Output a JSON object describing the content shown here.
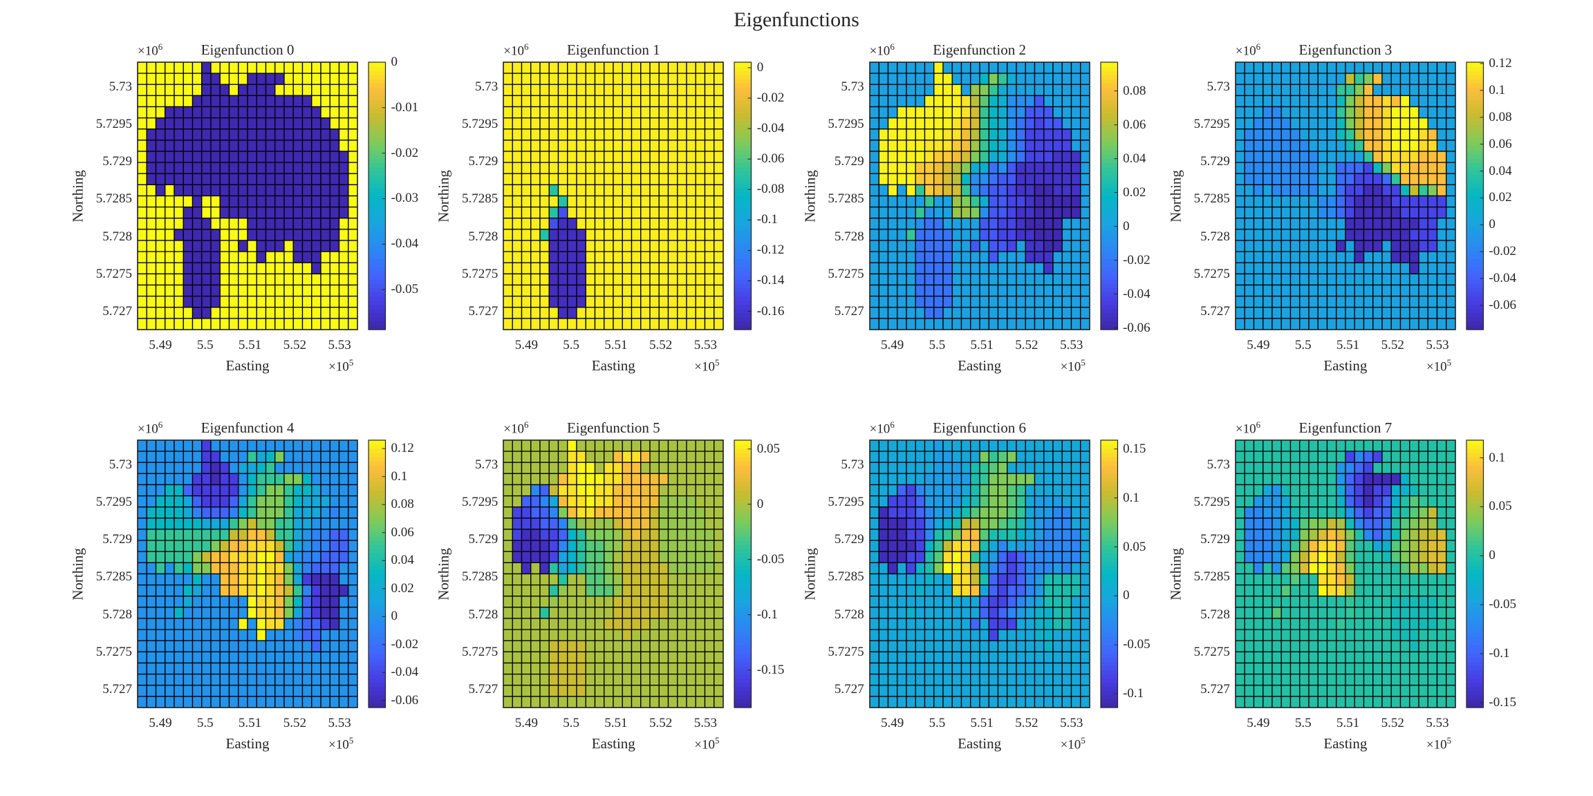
{
  "figure_title": "Eigenfunctions",
  "chart_data": [
    {
      "type": "heatmap",
      "title": "Eigenfunction 0",
      "xlabel": "Easting",
      "ylabel": "Northing",
      "x_multiplier": "×10",
      "x_exponent": "5",
      "y_multiplier": "×10",
      "y_exponent": "6",
      "xlim": [
        5.4849,
        5.534
      ],
      "ylim": [
        5.72676,
        5.730332
      ],
      "xticks": [
        "5.49",
        "5.5",
        "5.51",
        "5.52",
        "5.53"
      ],
      "yticks": [
        "5.727",
        "5.7275",
        "5.728",
        "5.7285",
        "5.729",
        "5.7295",
        "5.73"
      ],
      "colormap": "parula",
      "clim": [
        -0.0588,
        0
      ],
      "cbar_ticks": [
        "0",
        "-0.01",
        "-0.02",
        "-0.03",
        "-0.04",
        "-0.05"
      ],
      "levels": {
        "Y": 0,
        "B": -0.058
      },
      "grid": [
        "YYYYYYYBYYYYYYYYYYYYYYYY",
        "YYYYYYYBBYYYBBBBYYYYYYYY",
        "YYYYYYYBBBYBBBBYYYYYYYYY",
        "YYYYYYBBBBBBBBBBBBBYYYYY",
        "YYYBBBBBBBBBBBBBBBBBYYYY",
        "YYBBBBBBBBBBBBBBBBBBBYYY",
        "YBBBBBBBBBBBBBBBBBBBBBYY",
        "YBBBBBBBBBBBBBBBBBBBBBYY",
        "YBBBBBBBBBBBBBBBBBBBBBBY",
        "YBBBBBBBBBBBBBBBBBBBBBBY",
        "YBBBBBBBBBBBBBBBBBBBBBBY",
        "YYBYBBBBBBBBBBBBBBBBBBBY",
        "YYYYYYBYYBBBBBBBBBBBBBBY",
        "YYYYYBBYYBBBBBBBBBBBBBBY",
        "YYYYYBBBYYYYBBBBBBBBBBYY",
        "YYYYBBBBBYYYBBBBBBBBBBYY",
        "YYYYYBBBBYYBYBBBYBBBBBYY",
        "YYYYYBBBBYYYYBYYYBBBYYYY",
        "YYYYYBBBBYYYYYYYYYYBYYYY",
        "YYYYYBBBBYYYYYYYYYYYYYYY",
        "YYYYYBBBBYYYYYYYYYYYYYYY",
        "YYYYYBBBBYYYYYYYYYYYYYYY",
        "YYYYYYBBYYYYYYYYYYYYYYYY",
        "YYYYYYYYYYYYYYYYYYYYYYYY"
      ]
    },
    {
      "type": "heatmap",
      "title": "Eigenfunction 1",
      "xlabel": "Easting",
      "ylabel": "Northing",
      "x_multiplier": "×10",
      "x_exponent": "5",
      "y_multiplier": "×10",
      "y_exponent": "6",
      "xlim": [
        5.4849,
        5.534
      ],
      "ylim": [
        5.72676,
        5.730332
      ],
      "xticks": [
        "5.49",
        "5.5",
        "5.51",
        "5.52",
        "5.53"
      ],
      "yticks": [
        "5.727",
        "5.7275",
        "5.728",
        "5.7285",
        "5.729",
        "5.7295",
        "5.73"
      ],
      "colormap": "parula",
      "clim": [
        -0.172,
        0.0036
      ],
      "cbar_ticks": [
        "0",
        "-0.02",
        "-0.04",
        "-0.06",
        "-0.08",
        "-0.1",
        "-0.12",
        "-0.14",
        "-0.16"
      ],
      "levels": {
        "Y": 0,
        "D": -0.165,
        "t": -0.072,
        "l": -0.146
      },
      "grid": [
        "YYYYYYYYYYYYYYYYYYYYYYYY",
        "YYYYYYYYYYYYYYYYYYYYYYYY",
        "YYYYYYYYYYYYYYYYYYYYYYYY",
        "YYYYYYYYYYYYYYYYYYYYYYYY",
        "YYYYYYYYYYYYYYYYYYYYYYYY",
        "YYYYYYYYYYYYYYYYYYYYYYYY",
        "YYYYYYYYYYYYYYYYYYYYYYYY",
        "YYYYYYYYYYYYYYYYYYYYYYYY",
        "YYYYYYYYYYYYYYYYYYYYYYYY",
        "YYYYYYYYYYYYYYYYYYYYYYYY",
        "YYYYYYYYYYYYYYYYYYYYYYYY",
        "YYYYYtYYYYYYYYYYYYYYYYYY",
        "YYYYYYtYYYYYYYYYYYYYYYYY",
        "YYYYYtlYYYYYYYYYYYYYYYYY",
        "YYYYYlDDYYYYYYYYYYYYYYYY",
        "YYYYtDDDDYYYYYYYYYYYYYYY",
        "YYYYYDDDDYYYYYYYYYYYYYYY",
        "YYYYYDDDDYYYYYYYYYYYYYYY",
        "YYYYYDDDDYYYYYYYYYYYYYYY",
        "YYYYYDDDDYYYYYYYYYYYYYYY",
        "YYYYYDDDDYYYYYYYYYYYYYYY",
        "YYYYYDDDDYYYYYYYYYYYYYYY",
        "YYYYYYDDYYYYYYYYYYYYYYYY",
        "YYYYYYYYYYYYYYYYYYYYYYYY"
      ]
    },
    {
      "type": "heatmap",
      "title": "Eigenfunction 2",
      "xlabel": "Easting",
      "ylabel": "Northing",
      "x_multiplier": "×10",
      "x_exponent": "5",
      "y_multiplier": "×10",
      "y_exponent": "6",
      "xlim": [
        5.4849,
        5.534
      ],
      "ylim": [
        5.72676,
        5.730332
      ],
      "xticks": [
        "5.49",
        "5.5",
        "5.51",
        "5.52",
        "5.53"
      ],
      "yticks": [
        "5.727",
        "5.7275",
        "5.728",
        "5.7285",
        "5.729",
        "5.7295",
        "5.73"
      ],
      "colormap": "parula",
      "clim": [
        -0.061,
        0.097
      ],
      "cbar_ticks": [
        "0.08",
        "0.06",
        "0.04",
        "0.02",
        "0",
        "-0.02",
        "-0.04",
        "-0.06"
      ],
      "levels": {
        "z": 0,
        "Y": 0.095,
        "y": 0.091,
        "o": 0.084,
        "O": 0.078,
        "k": 0.069,
        "l": 0.062,
        "g": 0.056,
        "G": 0.05,
        "h": 0.042,
        "m": 0.034,
        "t": 0.018,
        "c": 0.009,
        "b": -0.01,
        "p": -0.023,
        "q": -0.034,
        "r": -0.042,
        "s": -0.052,
        "d": -0.059
      },
      "grid": [
        "zzzzzzzYzzzzzzzzzzzzzzzz",
        "zzzzzzzYYzzztGmczzzzzzzz",
        "zzzzzzzYYYzgGmczzzzzzzzz",
        "zzzzzzYYYYylhtcbbbqzzzzz",
        "zzzYYYYYYYykmtcbbqqqzzzz",
        "zzYYYYYYYyokmtcbpqrqqzzz",
        "zYYYYYYYyyOlmtcbprrrrrzz",
        "zYYYYYyyyoOgmtcbprrrrrzz",
        "zYYYYYyooOkGmccbprrrsssz",
        "zYYYYooOklGccpbqsssssssz",
        "zYYYYooOkltbbpqqsssssssz",
        "zzYzYmoOkkmbpqqrssddsssz",
        "zzzzzzmzzgGmcqqrrsdddddz",
        "zzzzzmbzzggGbqqrssdddddz",
        "zzzzzbppzzzzqqrrsddddzzz",
        "zzzzmppppzzzqqrrssdddzzz",
        "zzzzzppppzzqzqqrzssddzzz",
        "zzzzzppppzzzzqzzzssszzzz",
        "zzzzzppppzzzzzzzzzzszzzz",
        "zzzzzppppzzzzzzzzzzzzzzz",
        "zzzzzppppzzzzzzzzzzzzzzz",
        "zzzzzppppzzzzzzzzzzzzzzz",
        "zzzzzzppzzzzzzzzzzzzzzzz",
        "zzzzzzzzzzzzzzzzzzzzzzzz"
      ]
    },
    {
      "type": "heatmap",
      "title": "Eigenfunction 3",
      "xlabel": "Easting",
      "ylabel": "Northing",
      "x_multiplier": "×10",
      "x_exponent": "5",
      "y_multiplier": "×10",
      "y_exponent": "6",
      "xlim": [
        5.4849,
        5.534
      ],
      "ylim": [
        5.72676,
        5.730332
      ],
      "xticks": [
        "5.49",
        "5.5",
        "5.51",
        "5.52",
        "5.53"
      ],
      "yticks": [
        "5.727",
        "5.7275",
        "5.728",
        "5.7285",
        "5.729",
        "5.7295",
        "5.73"
      ],
      "colormap": "parula",
      "clim": [
        -0.078,
        0.121
      ],
      "cbar_ticks": [
        "0.12",
        "0.1",
        "0.08",
        "0.06",
        "0.04",
        "0.02",
        "0",
        "-0.02",
        "-0.04",
        "-0.06"
      ],
      "levels": {
        "z": 0,
        "3": -0.016,
        "2": -0.034,
        "1": -0.054,
        "0": -0.072,
        "5": 0.025,
        "6": 0.041,
        "7": 0.061,
        "8": 0.081,
        "9": 0.101,
        "y": 0.111,
        "Y": 0.12
      },
      "grid": [
        "zzzzzzzzzzzzzzzzzzzzzzzz",
        "zzzzzzzzzzzz8679zzzzzzzz",
        "zzzzzzzzzzz6679zzzzzzzzz",
        "zzzzzzzzzzz57899y9Yzzzzz",
        "zzz33zzzzzz67899yYYYzzzz",
        "zz3333zzzzz57899yYYYYzzz",
        "z333333zzzz56899yYYYy9zz",
        "z3333333zzzz5699yYYYyyzz",
        "z33333333zzzzz69yyyy999z",
        "z33333333zz222157yy9999z",
        "z33333333zz221112699999z",
        "zz3z33333zz211001158679z",
        "zzzzzzzzz33210000111111z",
        "zzzzzzzzz33210000011111z",
        "zzzzzzzzzzzz0000000011zz",
        "zzzzzzzzzzzz0000000111zz",
        "zzzzzzzzzzz0z000z00011zz",
        "zzzzzzzzzzzzz0zzz000zzzz",
        "zzzzzzzzzzzzzzzzzzz0zzzz",
        "zzzzzzzzzzzzzzzzzzzzzzzz",
        "zzzzzzzzzzzzzzzzzzzzzzzz",
        "zzzzzzzzzzzzzzzzzzzzzzzz",
        "zzzzzzzzzzzzzzzzzzzzzzzz",
        "zzzzzzzzzzzzzzzzzzzzzzzz"
      ]
    },
    {
      "type": "heatmap",
      "title": "Eigenfunction 4",
      "xlabel": "Easting",
      "ylabel": "Northing",
      "x_multiplier": "×10",
      "x_exponent": "5",
      "y_multiplier": "×10",
      "y_exponent": "6",
      "xlim": [
        5.4849,
        5.534
      ],
      "ylim": [
        5.72676,
        5.730332
      ],
      "xticks": [
        "5.49",
        "5.5",
        "5.51",
        "5.52",
        "5.53"
      ],
      "yticks": [
        "5.727",
        "5.7275",
        "5.728",
        "5.7285",
        "5.729",
        "5.7295",
        "5.73"
      ],
      "colormap": "parula",
      "clim": [
        -0.065,
        0.126
      ],
      "cbar_ticks": [
        "0.12",
        "0.1",
        "0.08",
        "0.06",
        "0.04",
        "0.02",
        "0",
        "-0.02",
        "-0.04",
        "-0.06"
      ],
      "levels": {
        "z": 0,
        "0": -0.059,
        "1": -0.046,
        "2": -0.027,
        "3": -0.01,
        "4": 0.015,
        "5": 0.031,
        "6": 0.05,
        "7": 0.069,
        "8": 0.088,
        "9": 0.107,
        "y": 0.116,
        "Y": 0.125
      },
      "grid": [
        "zzzzzzz1zzzzzzzzzzzzzzzz",
        "zzzzzzz11zzz6457zzzzzzzz",
        "zzzzzzz101z4456zzzzzzzzz",
        "zzzzzz11011z5666775zzzzz",
        "zzz55211111z56776554zzzz",
        "zz55542111246777654 44zzz",
        "z555543222356777 6444z3zz",
        "z55555544467877664 4zzzzz",
        "z66666666688998664z3322z",
        "z66666667899yyy864z3322z",
        "z666667899yyyYY94z33222z",
        "zz6z6577999yyYyy743222zz",
        "zzzzzz5zz99yyYy9741000zz",
        "zzzzz54zz99yyYy98631000z",
        "zzzzz4zzzzzzYyy9752100zz",
        "zzzz5zzzzzzzYyy9742100zz",
        "zzzzzzzzzzzYzYyyz32210zz",
        "zzzzzzzzzzzzzYzzz322zzzz",
        "zzzzzzzzzzzzzzzzzzz2zzzz",
        "zzzzzzzzzzzzzzzzzzzzzzzz",
        "zzzzzzzzzzzzzzzzzzzzzzzz",
        "zzzzzzzzzzzzzzzzzzzzzzzz",
        "zzzzzzzzzzzzzzzzzzzzzzzz",
        "zzzzzzzzzzzzzzzzzzzzzzzz"
      ]
    },
    {
      "type": "heatmap",
      "title": "Eigenfunction 5",
      "xlabel": "Easting",
      "ylabel": "Northing",
      "x_multiplier": "×10",
      "x_exponent": "5",
      "y_multiplier": "×10",
      "y_exponent": "6",
      "xlim": [
        5.4849,
        5.534
      ],
      "ylim": [
        5.72676,
        5.730332
      ],
      "xticks": [
        "5.49",
        "5.5",
        "5.51",
        "5.52",
        "5.53"
      ],
      "yticks": [
        "5.727",
        "5.7275",
        "5.728",
        "5.7285",
        "5.729",
        "5.7295",
        "5.73"
      ],
      "colormap": "parula",
      "clim": [
        -0.184,
        0.058
      ],
      "cbar_ticks": [
        "0.05",
        "0",
        "-0.05",
        "-0.1",
        "-0.15"
      ],
      "levels": {
        "z": 0,
        "a": 0.01,
        "9": 0.029,
        "o": 0.034,
        "y": 0.048,
        "Y": 0.057,
        "l": -0.007,
        "g": -0.015,
        "G": -0.027,
        "6": -0.044,
        "5": -0.068,
        "4": -0.087,
        "3": -0.111,
        "2": -0.136,
        "1": -0.155,
        "0": -0.174
      },
      "grid": [
        "zzzzzzzYzzzzzzzzzzzzzzzz",
        "zzzzzzzyyzzzoyyozzzzzzzz",
        "zzzzzzzyYYzyyoozzzzzzzzz",
        "zzzzzzoyYYYyyooo99zzzzzz",
        "zzz32ayyYYyyooo99zzzzzzz",
        "zz22349yyYyyooo99llllzzz",
        "z11223goyyoooo99alllllzz",
        "z111223Glzlla999alllllzz",
        "z10011256gggla9aallllllz",
        "z00001356GGglaaaallllllz",
        "z00001456GGgzaaaallllllz",
        "zz0z06456GGgzaaaaalllllz",
        "zzzzzz6zzGGglaaaaazzzzzz",
        "zzzzz6lzzGGGlaaaaazzzzzz",
        "zzzzzlzzzzzzaaaaaazzzzzz",
        "zzzz6zzzzzzzaaaaaazzzzzz",
        "zzzzzzzzzzzaaaaazzzzzzzz",
        "zzzzzzzzzzzzzazzzzzzzzzz",
        "zzzzzaaaazzzzzzzzzzzzzzz",
        "zzzzzaaaazzzzzzzzzzzzzzz",
        "zzzzzaaaazzzzzzzzzzzzzzz",
        "zzzzzaaaazzzzzzzzzzzzzzz",
        "zzzzzaaaazzzzzzzzzzzzzzz",
        "zzzzzzzzzzzzzzzzzzzzzzzz"
      ]
    },
    {
      "type": "heatmap",
      "title": "Eigenfunction 6",
      "xlabel": "Easting",
      "ylabel": "Northing",
      "x_multiplier": "×10",
      "x_exponent": "5",
      "y_multiplier": "×10",
      "y_exponent": "6",
      "xlim": [
        5.4849,
        5.534
      ],
      "ylim": [
        5.72676,
        5.730332
      ],
      "xticks": [
        "5.49",
        "5.5",
        "5.51",
        "5.52",
        "5.53"
      ],
      "yticks": [
        "5.727",
        "5.7275",
        "5.728",
        "5.7285",
        "5.729",
        "5.7295",
        "5.73"
      ],
      "colormap": "parula",
      "clim": [
        -0.114,
        0.159
      ],
      "cbar_ticks": [
        "0.15",
        "0.1",
        "0.05",
        "0",
        "-0.05",
        "-0.1"
      ],
      "levels": {
        "z": 0,
        "3": -0.013,
        "b": -0.032,
        "2": -0.059,
        "1": -0.081,
        "0": -0.106,
        "t": 0.017,
        "5": 0.036,
        "6": 0.05,
        "G": 0.063,
        "7": 0.077,
        "8": 0.104,
        "9": 0.132,
        "y": 0.145,
        "Y": 0.158
      },
      "grid": [
        "zzzzzzz3zzzzzzzzzzzzzzzz",
        "zzzzzzz33zzz76G7zzzzzzzz",
        "zzzzzzz333z56G7zzzzzzzzz",
        "zzzzzz333335677777zzzzzz",
        "zzz21b3333z5G77G6zzzzzzz",
        "zz11123333t5G77G6z333zzz",
        "z01112b33t5G777G6z33bbzz",
        "z00011bzt58877G65z3bbbzz",
        "z00011b56799G555tz3bbbbz",
        "z00001t68yy95zbz33bbbbbz",
        "z000115GyYy6z3212bbbbbbz",
        "zz0z1t57YYy8zb212bbb3bzz",
        "zzzzzztzzyy852112b35555z",
        "zzzzztzzzyy9z2122b35555z",
        "zzzzzzzzzzzz2112b3z555zz",
        "zzzztzzzzzzz212b3ztt55zz",
        "zzzzzzzzzzz2z111zztt55zz",
        "zzzzzzzzzzzzz1zzzzttzzzz",
        "zzzzzzzzzzzzzzzzzzztzzzz",
        "zzzzzzzzzzzzzzzzzzzzzzzz",
        "zzzzzzzzzzzzzzzzzzzzzzzz",
        "zzzzzzzzzzzzzzzzzzzzzzzz",
        "zzzzzzzzzzzzzzzzzzzzzzzz",
        "zzzzzzzzzzzzzzzzzzzzzzzz"
      ]
    },
    {
      "type": "heatmap",
      "title": "Eigenfunction 7",
      "xlabel": "Easting",
      "ylabel": "Northing",
      "x_multiplier": "×10",
      "x_exponent": "5",
      "y_multiplier": "×10",
      "y_exponent": "6",
      "xlim": [
        5.4849,
        5.534
      ],
      "ylim": [
        5.72676,
        5.730332
      ],
      "xticks": [
        "5.49",
        "5.5",
        "5.51",
        "5.52",
        "5.53"
      ],
      "yticks": [
        "5.727",
        "5.7275",
        "5.728",
        "5.7285",
        "5.729",
        "5.7295",
        "5.73"
      ],
      "colormap": "parula",
      "clim": [
        -0.155,
        0.118
      ],
      "cbar_ticks": [
        "0.1",
        "0.05",
        "0",
        "-0.05",
        "-0.1",
        "-0.15"
      ],
      "levels": {
        "z": 0,
        "m": 0.009,
        "5": -0.01,
        "t": -0.024,
        "4": -0.04,
        "3": -0.059,
        "b": -0.073,
        "2": -0.1,
        "1": -0.122,
        "0": -0.147,
        "G": 0.022,
        "7": 0.036,
        "g": 0.05,
        "8": 0.063,
        "a": 0.074,
        "9": 0.091,
        "y": 0.104,
        "Y": 0.117
      },
      "grid": [
        "zzzzzzzzzzzzzzzzzzzzzzzz",
        "zzzzzzzzzzzz1b21zzzzzzzz",
        "zzzzzzzzzzz3b21zzzzzzzzz",
        "zzzzzzzzzzz3210000tzzzzz",
        "zzz435zzzzz421011tt5zzzz",
        "zz3334zzzzzt21012tzGmzzz",
        "zbb3345zzzz5321225zG78zz",
        "zbbb34tG778g5b22bzG7ggzz",
        "zbbb34t7ga9a7zb2357g88az",
        "zbbb34mg9yy9Gzz4tG7g8aaz",
        "zbbb3478yYy8Gzzz5G7g8aaz",
        "zzbz3G7aYYy97zzzzzGg78az",
        "zzzzzzGzzyy98zzzzzzzzzzz",
        "zzzzzGzzzYyygzzzzzzzzzzz",
        "zzzzzzzzzzzzmzzzz55555zz",
        "zzzzGzzzzzzzmzzzz55555zz",
        "zzzzzzzzzzzmzzzzz55555zz",
        "zzzzzzzzzzzzzzzzz555zzzz",
        "zzzzzzzzzzzzzzzzzzz5zzzz",
        "zzzzzzzzzzzzzzzzzzzzzzzz",
        "zzzzzzzzzzzzzzzzzzzzzzzz",
        "zzzzzzzzzzzzzzzzzzzzzzzz",
        "zzzzzzzzzzzzzzzzzzzzzzzz",
        "zzzzzzzzzzzzzzzzzzzzzzzz"
      ]
    }
  ]
}
